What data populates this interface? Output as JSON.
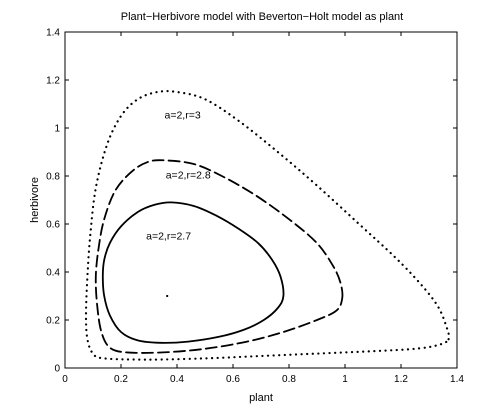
{
  "chart_data": {
    "type": "line",
    "title": "Plant−Herbivore model with Beverton−Holt model as plant",
    "xlabel": "plant",
    "ylabel": "herbivore",
    "xlim": [
      0,
      1.4
    ],
    "ylim": [
      0,
      1.4
    ],
    "xticks": [
      "0",
      "0.2",
      "0.4",
      "0.6",
      "0.8",
      "1",
      "1.2",
      "1.4"
    ],
    "yticks": [
      "0",
      "0.2",
      "0.4",
      "0.6",
      "0.8",
      "1",
      "1.2",
      "1.4"
    ],
    "grid": false,
    "equilibrium_point": {
      "x": 0.365,
      "y": 0.3
    },
    "series": [
      {
        "style": "solid",
        "points": [
          [
            0.78,
            0.3
          ],
          [
            0.77,
            0.38
          ],
          [
            0.74,
            0.45
          ],
          [
            0.69,
            0.52
          ],
          [
            0.62,
            0.58
          ],
          [
            0.54,
            0.635
          ],
          [
            0.46,
            0.675
          ],
          [
            0.38,
            0.69
          ],
          [
            0.32,
            0.68
          ],
          [
            0.26,
            0.65
          ],
          [
            0.2,
            0.59
          ],
          [
            0.16,
            0.52
          ],
          [
            0.14,
            0.45
          ],
          [
            0.135,
            0.38
          ],
          [
            0.14,
            0.3
          ],
          [
            0.16,
            0.22
          ],
          [
            0.2,
            0.15
          ],
          [
            0.26,
            0.115
          ],
          [
            0.34,
            0.105
          ],
          [
            0.44,
            0.11
          ],
          [
            0.55,
            0.13
          ],
          [
            0.64,
            0.16
          ],
          [
            0.71,
            0.2
          ],
          [
            0.76,
            0.25
          ],
          [
            0.78,
            0.3
          ]
        ]
      },
      {
        "style": "dashed",
        "points": [
          [
            0.99,
            0.29
          ],
          [
            0.985,
            0.35
          ],
          [
            0.96,
            0.42
          ],
          [
            0.9,
            0.52
          ],
          [
            0.8,
            0.62
          ],
          [
            0.68,
            0.72
          ],
          [
            0.56,
            0.8
          ],
          [
            0.46,
            0.85
          ],
          [
            0.36,
            0.865
          ],
          [
            0.3,
            0.86
          ],
          [
            0.24,
            0.82
          ],
          [
            0.18,
            0.74
          ],
          [
            0.14,
            0.62
          ],
          [
            0.12,
            0.5
          ],
          [
            0.11,
            0.38
          ],
          [
            0.115,
            0.26
          ],
          [
            0.13,
            0.15
          ],
          [
            0.16,
            0.085
          ],
          [
            0.22,
            0.065
          ],
          [
            0.35,
            0.065
          ],
          [
            0.5,
            0.08
          ],
          [
            0.65,
            0.11
          ],
          [
            0.78,
            0.15
          ],
          [
            0.9,
            0.2
          ],
          [
            0.97,
            0.24
          ],
          [
            0.99,
            0.29
          ]
        ]
      },
      {
        "style": "dotted",
        "points": [
          [
            1.37,
            0.12
          ],
          [
            1.36,
            0.18
          ],
          [
            1.33,
            0.26
          ],
          [
            1.27,
            0.35
          ],
          [
            1.18,
            0.46
          ],
          [
            1.05,
            0.6
          ],
          [
            0.9,
            0.76
          ],
          [
            0.76,
            0.9
          ],
          [
            0.62,
            1.03
          ],
          [
            0.5,
            1.12
          ],
          [
            0.4,
            1.15
          ],
          [
            0.33,
            1.15
          ],
          [
            0.26,
            1.12
          ],
          [
            0.2,
            1.05
          ],
          [
            0.15,
            0.93
          ],
          [
            0.11,
            0.75
          ],
          [
            0.09,
            0.55
          ],
          [
            0.08,
            0.38
          ],
          [
            0.075,
            0.22
          ],
          [
            0.08,
            0.12
          ],
          [
            0.1,
            0.06
          ],
          [
            0.14,
            0.04
          ],
          [
            0.3,
            0.035
          ],
          [
            0.5,
            0.04
          ],
          [
            0.7,
            0.05
          ],
          [
            0.9,
            0.06
          ],
          [
            1.1,
            0.07
          ],
          [
            1.25,
            0.08
          ],
          [
            1.33,
            0.095
          ],
          [
            1.37,
            0.12
          ]
        ]
      }
    ],
    "annotations": [
      {
        "text": "a=2,r=3",
        "x": 0.42,
        "y": 1.04
      },
      {
        "text": "a=2,r=2.8",
        "x": 0.44,
        "y": 0.79
      },
      {
        "text": "a=2,r=2.7",
        "x": 0.37,
        "y": 0.535
      }
    ]
  }
}
